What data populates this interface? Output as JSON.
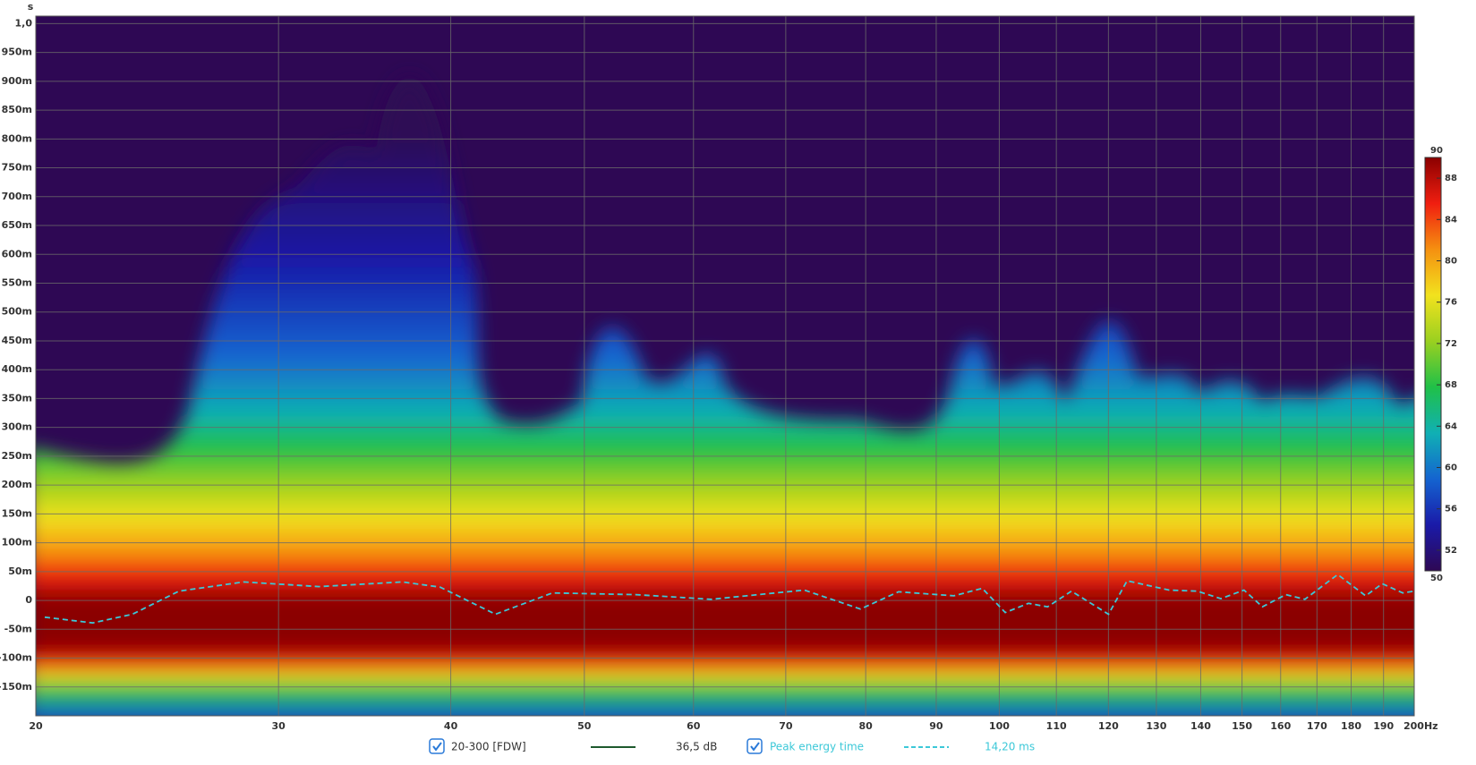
{
  "chart_data": {
    "type": "spectrogram",
    "y_unit": "s",
    "log_x": true,
    "grid": true,
    "xlim": [
      20,
      200
    ],
    "xticks": [
      20,
      30,
      40,
      50,
      60,
      70,
      80,
      90,
      100,
      110,
      120,
      130,
      140,
      150,
      160,
      170,
      180,
      190,
      {
        "value": 200,
        "label": "200Hz"
      }
    ],
    "ylim": [
      -0.2,
      1.013
    ],
    "yticks": [
      {
        "value": 1.0,
        "label": "1,0"
      },
      {
        "value": 0.95,
        "label": "950m"
      },
      {
        "value": 0.9,
        "label": "900m"
      },
      {
        "value": 0.85,
        "label": "850m"
      },
      {
        "value": 0.8,
        "label": "800m"
      },
      {
        "value": 0.75,
        "label": "750m"
      },
      {
        "value": 0.7,
        "label": "700m"
      },
      {
        "value": 0.65,
        "label": "650m"
      },
      {
        "value": 0.6,
        "label": "600m"
      },
      {
        "value": 0.55,
        "label": "550m"
      },
      {
        "value": 0.5,
        "label": "500m"
      },
      {
        "value": 0.45,
        "label": "450m"
      },
      {
        "value": 0.4,
        "label": "400m"
      },
      {
        "value": 0.35,
        "label": "350m"
      },
      {
        "value": 0.3,
        "label": "300m"
      },
      {
        "value": 0.25,
        "label": "250m"
      },
      {
        "value": 0.2,
        "label": "200m"
      },
      {
        "value": 0.15,
        "label": "150m"
      },
      {
        "value": 0.1,
        "label": "100m"
      },
      {
        "value": 0.05,
        "label": "50m"
      },
      0,
      {
        "value": -0.05,
        "label": "-50m"
      },
      {
        "value": -0.1,
        "label": "-100m"
      },
      {
        "value": -0.15,
        "label": "-150m"
      }
    ],
    "colorbar": {
      "lim": [
        50,
        90
      ],
      "ticks": [
        50,
        52,
        56,
        60,
        64,
        68,
        72,
        76,
        80,
        84,
        88,
        90
      ],
      "colors": [
        "#2e0854",
        "#1a1aa8",
        "#1464d0",
        "#10b0b4",
        "#20c048",
        "#9ad020",
        "#f2e21e",
        "#f59010",
        "#f01e10",
        "#8b0000"
      ]
    },
    "measurement": {
      "name": "20-300 [FDW]",
      "color": "#1e5a2e",
      "label": "36,5 dB"
    },
    "series": [
      {
        "name": "Peak energy time",
        "color": "#3cc8d8",
        "dashed": true,
        "label": "14,20 ms",
        "x": [
          20.3,
          22.0,
          23.5,
          25.4,
          28.3,
          32.1,
          36.9,
          39.3,
          43.1,
          47.4,
          54.5,
          61.8,
          72.2,
          79.3,
          84.5,
          92.7,
          97.2,
          101,
          105,
          108.4,
          112.8,
          120,
          123.8,
          132.8,
          139.2,
          144.8,
          150.5,
          155.2,
          161.4,
          166.6,
          176,
          184.4,
          189.6,
          196.2,
          200
        ],
        "values": [
          -0.029,
          -0.039,
          -0.024,
          0.016,
          0.032,
          0.024,
          0.032,
          0.023,
          -0.024,
          0.013,
          0.01,
          0.002,
          0.018,
          -0.015,
          0.015,
          0.008,
          0.021,
          -0.021,
          -0.005,
          -0.011,
          0.016,
          -0.024,
          0.034,
          0.018,
          0.016,
          0.003,
          0.018,
          -0.011,
          0.01,
          0.002,
          0.045,
          0.008,
          0.029,
          0.013,
          0.016
        ]
      }
    ]
  }
}
